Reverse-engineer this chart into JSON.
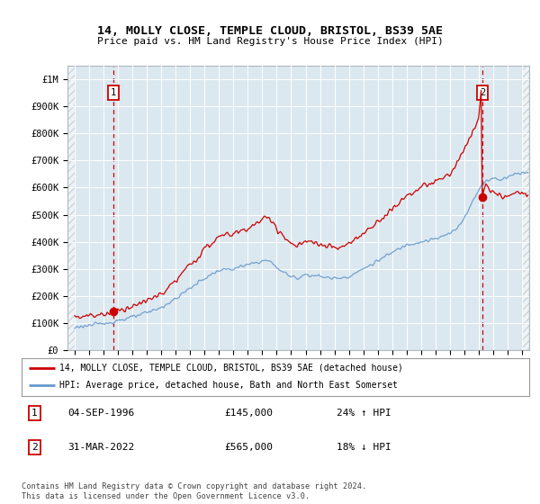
{
  "title1": "14, MOLLY CLOSE, TEMPLE CLOUD, BRISTOL, BS39 5AE",
  "title2": "Price paid vs. HM Land Registry's House Price Index (HPI)",
  "ylabel_ticks": [
    "£0",
    "£100K",
    "£200K",
    "£300K",
    "£400K",
    "£500K",
    "£600K",
    "£700K",
    "£800K",
    "£900K",
    "£1M"
  ],
  "ytick_vals": [
    0,
    100000,
    200000,
    300000,
    400000,
    500000,
    600000,
    700000,
    800000,
    900000,
    1000000
  ],
  "ylim": [
    0,
    1050000
  ],
  "xlim_start": 1993.5,
  "xlim_end": 2025.5,
  "xticks": [
    1994,
    1995,
    1996,
    1997,
    1998,
    1999,
    2000,
    2001,
    2002,
    2003,
    2004,
    2005,
    2006,
    2007,
    2008,
    2009,
    2010,
    2011,
    2012,
    2013,
    2014,
    2015,
    2016,
    2017,
    2018,
    2019,
    2020,
    2021,
    2022,
    2023,
    2024,
    2025
  ],
  "transaction1_x": 1996.67,
  "transaction1_y": 145000,
  "transaction1_label": "1",
  "transaction1_date": "04-SEP-1996",
  "transaction1_price": "£145,000",
  "transaction1_hpi": "24% ↑ HPI",
  "transaction2_x": 2022.25,
  "transaction2_y": 565000,
  "transaction2_label": "2",
  "transaction2_date": "31-MAR-2022",
  "transaction2_price": "£565,000",
  "transaction2_hpi": "18% ↓ HPI",
  "red_color": "#cc0000",
  "blue_color": "#6699cc",
  "bg_color": "#dce8f0",
  "legend_line1": "14, MOLLY CLOSE, TEMPLE CLOUD, BRISTOL, BS39 5AE (detached house)",
  "legend_line2": "HPI: Average price, detached house, Bath and North East Somerset",
  "footer": "Contains HM Land Registry data © Crown copyright and database right 2024.\nThis data is licensed under the Open Government Licence v3.0."
}
